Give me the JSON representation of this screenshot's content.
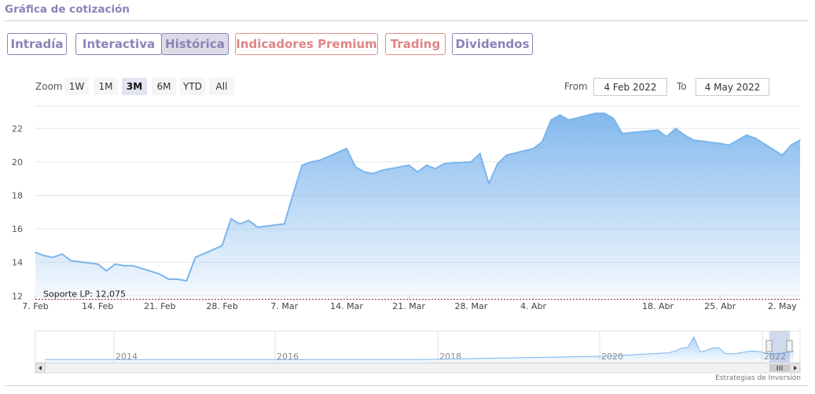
{
  "page": {
    "title": "Gráfica de cotización"
  },
  "tabs": [
    {
      "label": "Intradía",
      "active": false,
      "style": "normal"
    },
    {
      "label": "Interactiva",
      "active": false,
      "style": "normal"
    },
    {
      "label": "Histórica",
      "active": true,
      "style": "normal"
    },
    {
      "label": "Indicadores Premium",
      "active": false,
      "style": "premium"
    },
    {
      "label": "Trading",
      "active": false,
      "style": "premium"
    },
    {
      "label": "Dividendos",
      "active": false,
      "style": "normal"
    }
  ],
  "zoom": {
    "label": "Zoom",
    "buttons": [
      {
        "label": "1W",
        "active": false
      },
      {
        "label": "1M",
        "active": false
      },
      {
        "label": "3M",
        "active": true
      },
      {
        "label": "6M",
        "active": false
      },
      {
        "label": "YTD",
        "active": false
      },
      {
        "label": "All",
        "active": false
      }
    ]
  },
  "range": {
    "from_label": "From",
    "from_value": "4 Feb 2022",
    "to_label": "To",
    "to_value": "4 May 2022"
  },
  "credit": "Estrategias de Inversión",
  "colors": {
    "accent": "#8a83b8",
    "premium": "#e08585",
    "line": "#7cb5ec",
    "support_line": "#8b1a1a"
  },
  "chart_data": {
    "type": "area",
    "ylim": [
      12,
      23
    ],
    "yticks": [
      12,
      14,
      16,
      18,
      20,
      22
    ],
    "grid": true,
    "xticks": [
      {
        "date": "2022-02-07",
        "label": "7. Feb"
      },
      {
        "date": "2022-02-14",
        "label": "14. Feb"
      },
      {
        "date": "2022-02-21",
        "label": "21. Feb"
      },
      {
        "date": "2022-02-28",
        "label": "28. Feb"
      },
      {
        "date": "2022-03-07",
        "label": "7. Mar"
      },
      {
        "date": "2022-03-14",
        "label": "14. Mar"
      },
      {
        "date": "2022-03-21",
        "label": "21. Mar"
      },
      {
        "date": "2022-03-28",
        "label": "28. Mar"
      },
      {
        "date": "2022-04-04",
        "label": "4. Abr"
      },
      {
        "date": "2022-04-18",
        "label": "18. Abr"
      },
      {
        "date": "2022-04-25",
        "label": "25. Abr"
      },
      {
        "date": "2022-05-02",
        "label": "2. May"
      }
    ],
    "x_start": "2022-02-07",
    "x_end": "2022-05-04",
    "series": [
      {
        "points": [
          [
            "2022-02-07",
            14.6
          ],
          [
            "2022-02-08",
            14.4
          ],
          [
            "2022-02-09",
            14.3
          ],
          [
            "2022-02-10",
            14.5
          ],
          [
            "2022-02-11",
            14.1
          ],
          [
            "2022-02-14",
            13.9
          ],
          [
            "2022-02-15",
            13.5
          ],
          [
            "2022-02-16",
            13.9
          ],
          [
            "2022-02-17",
            13.8
          ],
          [
            "2022-02-18",
            13.8
          ],
          [
            "2022-02-21",
            13.3
          ],
          [
            "2022-02-22",
            13.0
          ],
          [
            "2022-02-23",
            13.0
          ],
          [
            "2022-02-24",
            12.9
          ],
          [
            "2022-02-25",
            14.3
          ],
          [
            "2022-02-28",
            15.0
          ],
          [
            "2022-03-01",
            16.6
          ],
          [
            "2022-03-02",
            16.3
          ],
          [
            "2022-03-03",
            16.5
          ],
          [
            "2022-03-04",
            16.1
          ],
          [
            "2022-03-07",
            16.3
          ],
          [
            "2022-03-08",
            18.1
          ],
          [
            "2022-03-09",
            19.8
          ],
          [
            "2022-03-10",
            20.0
          ],
          [
            "2022-03-11",
            20.1
          ],
          [
            "2022-03-14",
            20.8
          ],
          [
            "2022-03-15",
            19.7
          ],
          [
            "2022-03-16",
            19.4
          ],
          [
            "2022-03-17",
            19.3
          ],
          [
            "2022-03-18",
            19.5
          ],
          [
            "2022-03-21",
            19.8
          ],
          [
            "2022-03-22",
            19.4
          ],
          [
            "2022-03-23",
            19.8
          ],
          [
            "2022-03-24",
            19.6
          ],
          [
            "2022-03-25",
            19.9
          ],
          [
            "2022-03-28",
            20.0
          ],
          [
            "2022-03-29",
            20.5
          ],
          [
            "2022-03-30",
            18.7
          ],
          [
            "2022-03-31",
            19.9
          ],
          [
            "2022-04-01",
            20.4
          ],
          [
            "2022-04-04",
            20.8
          ],
          [
            "2022-04-05",
            21.2
          ],
          [
            "2022-04-06",
            22.5
          ],
          [
            "2022-04-07",
            22.8
          ],
          [
            "2022-04-08",
            22.5
          ],
          [
            "2022-04-11",
            22.9
          ],
          [
            "2022-04-12",
            22.9
          ],
          [
            "2022-04-13",
            22.6
          ],
          [
            "2022-04-14",
            21.7
          ],
          [
            "2022-04-18",
            21.9
          ],
          [
            "2022-04-19",
            21.5
          ],
          [
            "2022-04-20",
            22.0
          ],
          [
            "2022-04-21",
            21.6
          ],
          [
            "2022-04-22",
            21.3
          ],
          [
            "2022-04-25",
            21.1
          ],
          [
            "2022-04-26",
            21.0
          ],
          [
            "2022-04-27",
            21.3
          ],
          [
            "2022-04-28",
            21.6
          ],
          [
            "2022-04-29",
            21.4
          ],
          [
            "2022-05-02",
            20.4
          ],
          [
            "2022-05-03",
            21.0
          ],
          [
            "2022-05-04",
            21.3
          ]
        ]
      }
    ],
    "support": {
      "label": "Soporte LP: 12,075",
      "value": 12.075
    },
    "navigator": {
      "year_labels": [
        "2014",
        "2016",
        "2018",
        "2020",
        "2022"
      ]
    }
  }
}
